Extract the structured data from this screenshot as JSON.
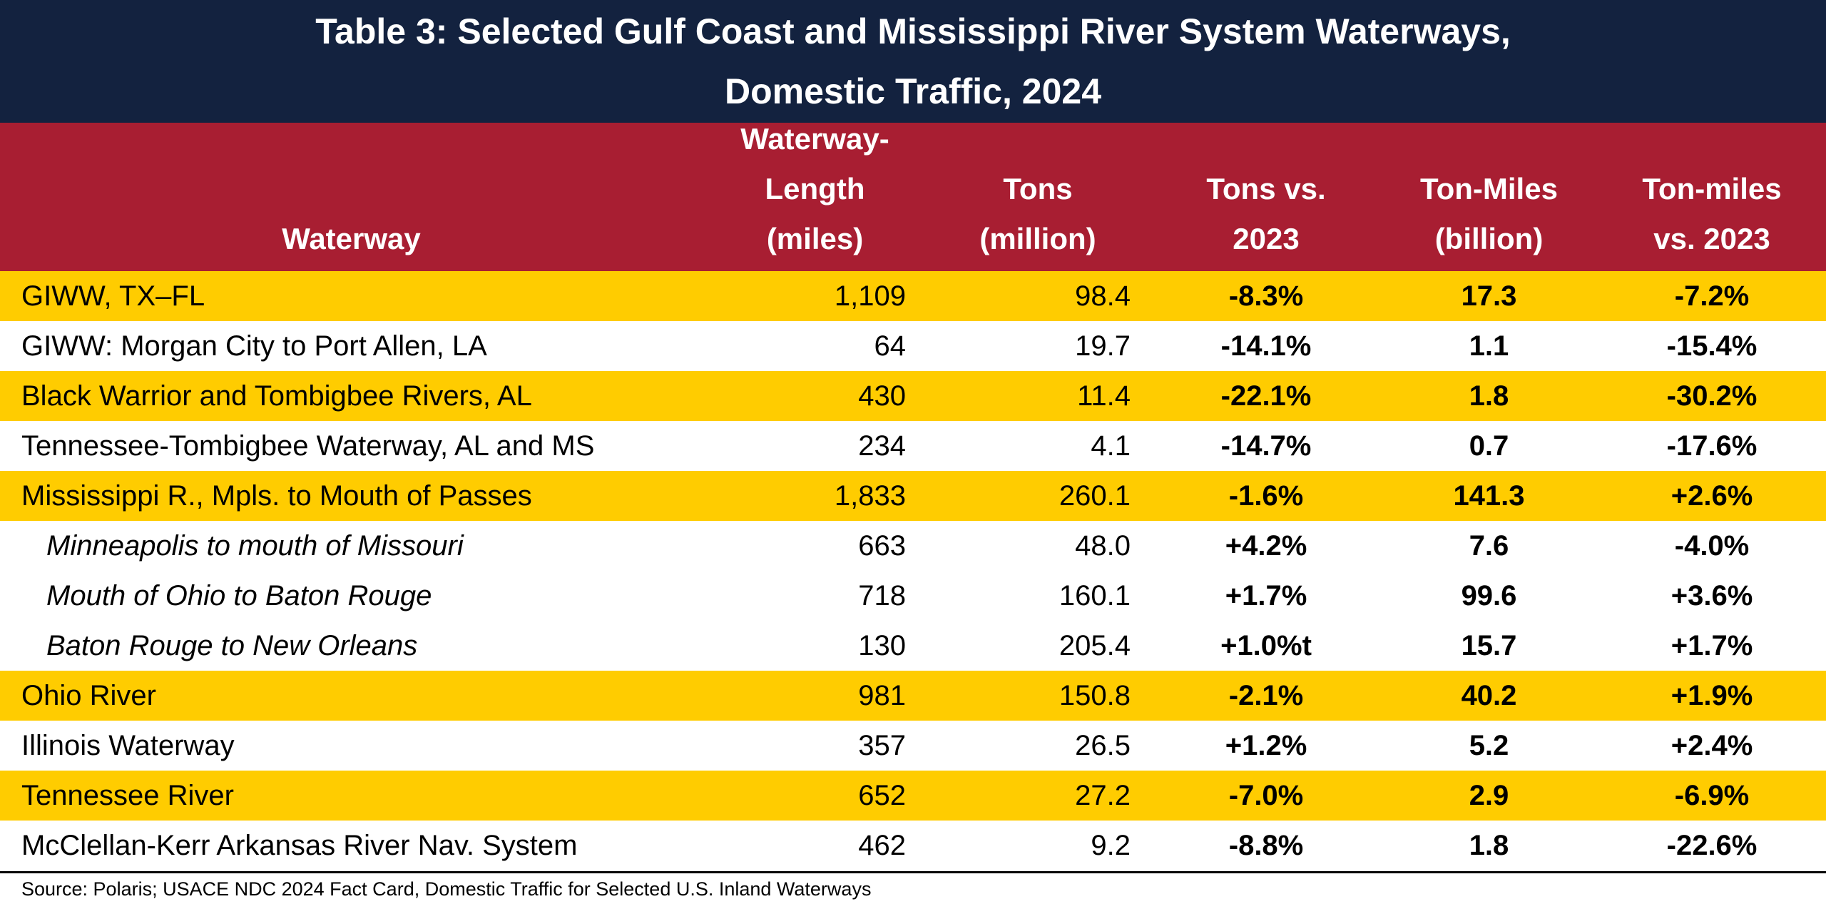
{
  "title": {
    "line1": "Table 3: Selected Gulf Coast and Mississippi River System Waterways,",
    "line2": "Domestic Traffic, 2024"
  },
  "columns": {
    "waterway": "Waterway",
    "length": [
      "Waterway-",
      "Length",
      "(miles)"
    ],
    "tons": [
      "Tons",
      "(million)"
    ],
    "tons_change": [
      "Tons vs.",
      "2023"
    ],
    "ton_miles": [
      "Ton-Miles",
      "(billion)"
    ],
    "ton_miles_change": [
      "Ton-miles",
      "vs. 2023"
    ]
  },
  "rows": [
    {
      "waterway": "GIWW, TX–FL",
      "length": "1,109",
      "tons": "98.4",
      "tons_change": "-8.3%",
      "ton_miles": "17.3",
      "ton_miles_change": "-7.2%",
      "style": "yellow",
      "sub": false
    },
    {
      "waterway": "GIWW: Morgan City to Port Allen, LA",
      "length": "64",
      "tons": "19.7",
      "tons_change": "-14.1%",
      "ton_miles": "1.1",
      "ton_miles_change": "-15.4%",
      "style": "white",
      "sub": false
    },
    {
      "waterway": "Black Warrior and Tombigbee Rivers, AL",
      "length": "430",
      "tons": "11.4",
      "tons_change": "-22.1%",
      "ton_miles": "1.8",
      "ton_miles_change": "-30.2%",
      "style": "yellow",
      "sub": false
    },
    {
      "waterway": "Tennessee-Tombigbee Waterway, AL and MS",
      "length": "234",
      "tons": "4.1",
      "tons_change": "-14.7%",
      "ton_miles": "0.7",
      "ton_miles_change": "-17.6%",
      "style": "white",
      "sub": false
    },
    {
      "waterway": "Mississippi R., Mpls. to Mouth of Passes",
      "length": "1,833",
      "tons": "260.1",
      "tons_change": "-1.6%",
      "ton_miles": "141.3",
      "ton_miles_change": "+2.6%",
      "style": "yellow",
      "sub": false
    },
    {
      "waterway": "Minneapolis to mouth of Missouri",
      "length": "663",
      "tons": "48.0",
      "tons_change": "+4.2%",
      "ton_miles": "7.6",
      "ton_miles_change": "-4.0%",
      "style": "white",
      "sub": true
    },
    {
      "waterway": "Mouth of Ohio to Baton Rouge",
      "length": "718",
      "tons": "160.1",
      "tons_change": "+1.7%",
      "ton_miles": "99.6",
      "ton_miles_change": "+3.6%",
      "style": "white",
      "sub": true
    },
    {
      "waterway": "Baton Rouge to New Orleans",
      "length": "130",
      "tons": "205.4",
      "tons_change": "+1.0%t",
      "ton_miles": "15.7",
      "ton_miles_change": "+1.7%",
      "style": "white",
      "sub": true
    },
    {
      "waterway": "Ohio River",
      "length": "981",
      "tons": "150.8",
      "tons_change": "-2.1%",
      "ton_miles": "40.2",
      "ton_miles_change": "+1.9%",
      "style": "yellow",
      "sub": false
    },
    {
      "waterway": "Illinois Waterway",
      "length": "357",
      "tons": "26.5",
      "tons_change": "+1.2%",
      "ton_miles": "5.2",
      "ton_miles_change": "+2.4%",
      "style": "white",
      "sub": false
    },
    {
      "waterway": "Tennessee River",
      "length": "652",
      "tons": "27.2",
      "tons_change": "-7.0%",
      "ton_miles": "2.9",
      "ton_miles_change": "-6.9%",
      "style": "yellow",
      "sub": false
    },
    {
      "waterway": "McClellan-Kerr Arkansas River Nav. System",
      "length": "462",
      "tons": "9.2",
      "tons_change": "-8.8%",
      "ton_miles": "1.8",
      "ton_miles_change": "-22.6%",
      "style": "white",
      "sub": false
    }
  ],
  "source": "Source: Polaris; USACE NDC 2024 Fact Card, Domestic Traffic for Selected U.S. Inland Waterways",
  "colors": {
    "title_bg": "#13223F",
    "header_bg": "#A81E32",
    "highlight_row": "#FFCC00"
  }
}
